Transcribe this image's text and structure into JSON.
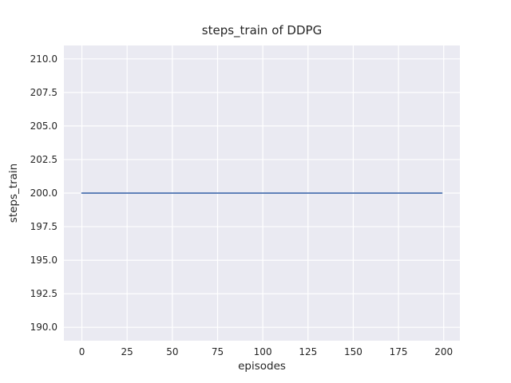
{
  "chart_data": {
    "type": "line",
    "title": "steps_train of DDPG",
    "xlabel": "episodes",
    "ylabel": "steps_train",
    "series": [
      {
        "name": "steps_train",
        "x": [
          0,
          199
        ],
        "y": [
          200,
          200
        ],
        "color": "#4c72b0",
        "description": "constant horizontal line: steps_train = 200 for every episode from 0 to 199"
      }
    ],
    "xlim": [
      -9.95,
      208.95
    ],
    "ylim": [
      189,
      211
    ],
    "x_ticks": [
      0,
      25,
      50,
      75,
      100,
      125,
      150,
      175,
      200
    ],
    "x_tick_labels": [
      "0",
      "25",
      "50",
      "75",
      "100",
      "125",
      "150",
      "175",
      "200"
    ],
    "y_ticks": [
      190,
      192.5,
      195,
      197.5,
      200,
      202.5,
      205,
      207.5,
      210
    ],
    "y_tick_labels": [
      "190.0",
      "192.5",
      "195.0",
      "197.5",
      "200.0",
      "202.5",
      "205.0",
      "207.5",
      "210.0"
    ],
    "grid": true,
    "legend": "none",
    "style": "seaborn-darkgrid",
    "colors": {
      "plot_background": "#eaeaf2",
      "figure_background": "#ffffff",
      "gridline": "#ffffff",
      "line": "#4c72b0",
      "text": "#262626"
    }
  }
}
